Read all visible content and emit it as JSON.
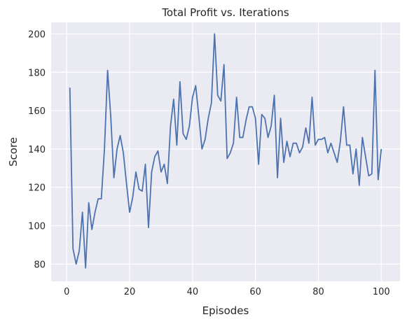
{
  "chart_data": {
    "type": "line",
    "title": "Total Profit vs. Iterations",
    "xlabel": "Episodes",
    "ylabel": "Score",
    "xlim": [
      -4.95,
      105.95
    ],
    "ylim": [
      71,
      206
    ],
    "xticks": [
      0,
      20,
      40,
      60,
      80,
      100
    ],
    "yticks": [
      80,
      100,
      120,
      140,
      160,
      180,
      200
    ],
    "grid": true,
    "line_color": "#4c72b0",
    "background_color": "#eaeaf2",
    "series": [
      {
        "x": [
          1,
          2,
          3,
          4,
          5,
          6,
          7,
          8,
          9,
          10,
          11,
          12,
          13,
          14,
          15,
          16,
          17,
          18,
          19,
          20,
          21,
          22,
          23,
          24,
          25,
          26,
          27,
          28,
          29,
          30,
          31,
          32,
          33,
          34,
          35,
          36,
          37,
          38,
          39,
          40,
          41,
          42,
          43,
          44,
          45,
          46,
          47,
          48,
          49,
          50,
          51,
          52,
          53,
          54,
          55,
          56,
          57,
          58,
          59,
          60,
          61,
          62,
          63,
          64,
          65,
          66,
          67,
          68,
          69,
          70,
          71,
          72,
          73,
          74,
          75,
          76,
          77,
          78,
          79,
          80,
          81,
          82,
          83,
          84,
          85,
          86,
          87,
          88,
          89,
          90,
          91,
          92,
          93,
          94,
          95,
          96,
          97,
          98,
          99,
          100
        ],
        "values": [
          172,
          88,
          80,
          87,
          107,
          78,
          112,
          98,
          107,
          114,
          114,
          140,
          181,
          157,
          125,
          140,
          147,
          138,
          122,
          107,
          115,
          128,
          119,
          118,
          132,
          99,
          128,
          136,
          139,
          128,
          132,
          122,
          152,
          166,
          142,
          175,
          148,
          145,
          152,
          167,
          173,
          157,
          140,
          145,
          156,
          164,
          200,
          168,
          165,
          184,
          135,
          138,
          143,
          167,
          146,
          146,
          155,
          162,
          162,
          156,
          132,
          158,
          156,
          146,
          152,
          168,
          125,
          156,
          133,
          144,
          136,
          143,
          143,
          138,
          141,
          151,
          143,
          167,
          142,
          145,
          145,
          146,
          138,
          143,
          138,
          133,
          144,
          162,
          142,
          142,
          127,
          140,
          121,
          146,
          136,
          126,
          127,
          181,
          124,
          140
        ]
      }
    ]
  }
}
